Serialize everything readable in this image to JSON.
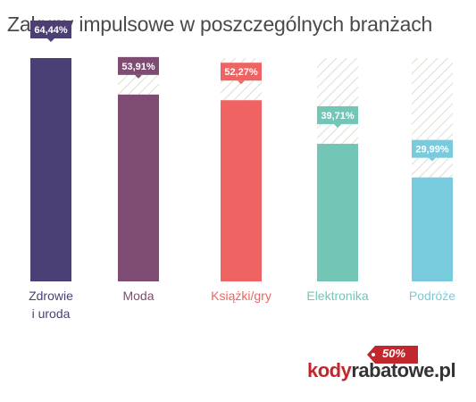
{
  "chart_data": {
    "type": "bar",
    "title": "Zakupy impulsowe w poszczególnych branżach",
    "categories": [
      "Zdrowie\ni uroda",
      "Moda",
      "Książki/gry",
      "Elektronika",
      "Podróże"
    ],
    "values": [
      64.44,
      53.91,
      52.27,
      39.71,
      29.99
    ],
    "value_labels": [
      "64,44%",
      "53,91%",
      "52,27%",
      "39,71%",
      "29,99%"
    ],
    "colors": [
      "#4b3f76",
      "#7e4b72",
      "#ef6362",
      "#73c6b6",
      "#78cbdd"
    ],
    "ylim": [
      0,
      64.44
    ],
    "xlabel": "",
    "ylabel": "",
    "grid": false,
    "legend": "none"
  },
  "logo": {
    "word_1": "kody",
    "word_2": "rabatowe.pl",
    "tag": "50%",
    "tag_color": "#c0282d"
  }
}
